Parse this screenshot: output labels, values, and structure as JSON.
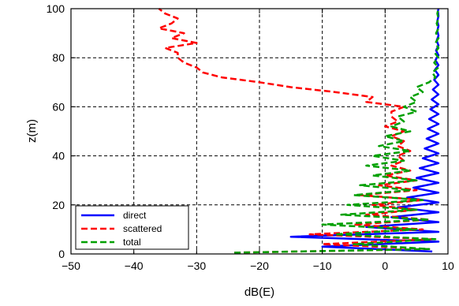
{
  "chart_data": {
    "type": "line",
    "orientation": "horizontal-profile",
    "xlabel": "dB(E)",
    "ylabel": "z(m)",
    "xlim": [
      -50,
      10
    ],
    "ylim": [
      0,
      100
    ],
    "xticks": [
      -50,
      -40,
      -30,
      -20,
      -10,
      0,
      10
    ],
    "yticks": [
      0,
      20,
      40,
      60,
      80,
      100
    ],
    "x_tick_labels": [
      "−50",
      "−40",
      "−30",
      "−20",
      "−10",
      "0",
      "10"
    ],
    "y_tick_labels": [
      "0",
      "20",
      "40",
      "60",
      "80",
      "100"
    ],
    "grid": true,
    "grid_style": "dashed",
    "legend_position": "bottom-left",
    "series": [
      {
        "name": "direct",
        "color": "#0000ff",
        "style": "solid",
        "y": [
          1,
          3,
          5,
          7,
          9,
          11,
          13,
          15,
          17,
          19,
          21,
          23,
          25,
          27,
          29,
          31,
          33,
          35,
          37,
          39,
          41,
          43,
          45,
          47,
          49,
          51,
          53,
          55,
          57,
          59,
          61,
          63,
          65,
          67,
          69,
          71,
          73,
          75,
          77,
          79,
          81,
          83,
          85,
          87,
          89,
          91,
          93,
          95,
          97,
          99,
          100
        ],
        "x": [
          7.5,
          -10,
          8.5,
          -15,
          8.5,
          -3,
          8.5,
          1,
          8.5,
          2,
          8.5,
          3.5,
          8.5,
          4.5,
          8.5,
          5,
          8.5,
          5.5,
          8.5,
          6,
          8.5,
          6.3,
          8.5,
          6.6,
          8.5,
          6.8,
          8.5,
          7,
          8.5,
          7.2,
          8.5,
          7.4,
          8.5,
          7.6,
          8.5,
          7.8,
          8.5,
          7.9,
          8.5,
          8,
          8.5,
          8.1,
          8.5,
          8.2,
          8.5,
          8.3,
          8.5,
          8.3,
          8.5,
          8.4,
          8.5
        ]
      },
      {
        "name": "scattered",
        "color": "#ff0000",
        "style": "dashed",
        "y": [
          0.5,
          2,
          4,
          6,
          8,
          10,
          12,
          14,
          16,
          18,
          20,
          22,
          24,
          26,
          28,
          30,
          32,
          34,
          36,
          38,
          40,
          42,
          44,
          46,
          48,
          50,
          52,
          54,
          56,
          58,
          60,
          62,
          64,
          66,
          68,
          70,
          72,
          74,
          76,
          78,
          80,
          82,
          84,
          86,
          88,
          90,
          92,
          94,
          96,
          98,
          100
        ],
        "x": [
          -24,
          7,
          -10,
          7.5,
          -12,
          6,
          -5,
          7,
          -3,
          5,
          -2,
          6,
          -4,
          5,
          -1,
          5,
          0,
          4,
          1,
          3,
          2,
          4,
          2,
          3,
          1,
          3,
          0,
          2,
          1,
          1,
          3,
          -3,
          -2,
          -8,
          -15,
          -20,
          -26,
          -29,
          -30,
          -32,
          -33,
          -33,
          -35,
          -30,
          -34,
          -32,
          -36,
          -34,
          -33,
          -35,
          -36
        ]
      },
      {
        "name": "total",
        "color": "#00a000",
        "style": "dashed",
        "y": [
          0.5,
          2,
          4,
          6,
          8,
          10,
          12,
          14,
          16,
          18,
          20,
          22,
          24,
          26,
          28,
          30,
          32,
          34,
          36,
          38,
          40,
          42,
          44,
          46,
          48,
          50,
          52,
          54,
          56,
          58,
          60,
          62,
          64,
          66,
          68,
          70,
          72,
          74,
          76,
          78,
          80,
          82,
          84,
          86,
          88,
          90,
          92,
          94,
          96,
          98,
          100
        ],
        "x": [
          -24,
          7,
          -5,
          8,
          -8,
          5,
          -10,
          7,
          -7,
          5,
          -6,
          6,
          -5,
          4,
          -4,
          5,
          -2,
          4,
          -3,
          3,
          -2,
          4,
          -1,
          3,
          0,
          4,
          1,
          3,
          2,
          5,
          3,
          5,
          4,
          6,
          5,
          7,
          8,
          7.5,
          8.5,
          7.8,
          8.5,
          7.9,
          8.5,
          8,
          8.5,
          8.1,
          8.5,
          8.2,
          8.5,
          8.3,
          8.5
        ]
      }
    ]
  }
}
